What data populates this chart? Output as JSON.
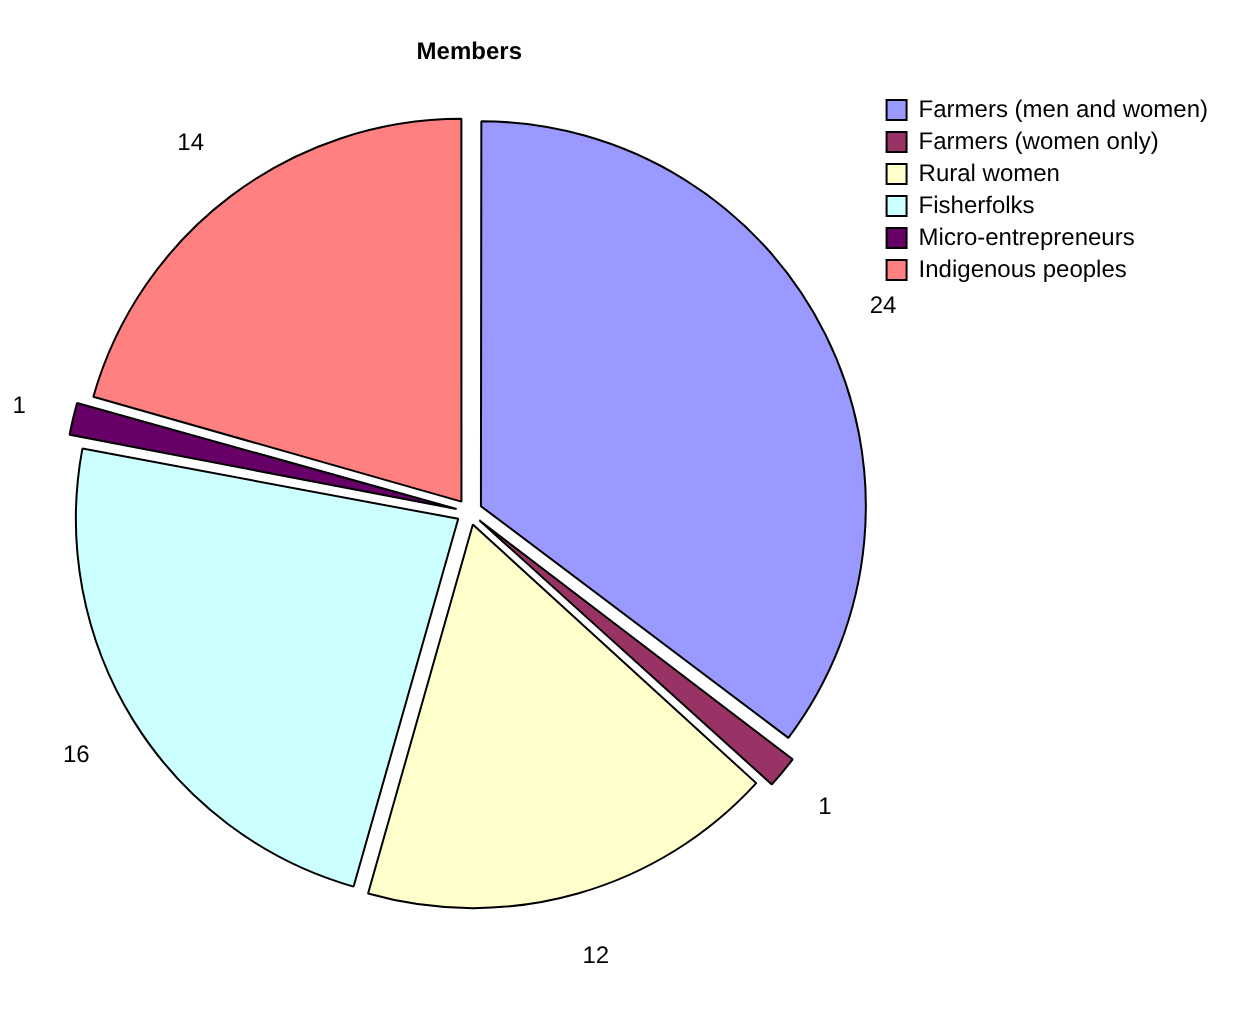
{
  "chart_data": {
    "type": "pie",
    "title": "Members",
    "categories": [
      "Farmers (men and women)",
      "Farmers (women only)",
      "Rural women",
      "Fisherfolks",
      "Micro-entrepreneurs",
      "Indigenous peoples"
    ],
    "values": [
      24,
      1,
      12,
      16,
      1,
      14
    ],
    "colors": [
      "#9999ff",
      "#993366",
      "#ffffcc",
      "#ccffff",
      "#660066",
      "#ff8080"
    ],
    "data_labels": true,
    "legend": "top right"
  }
}
